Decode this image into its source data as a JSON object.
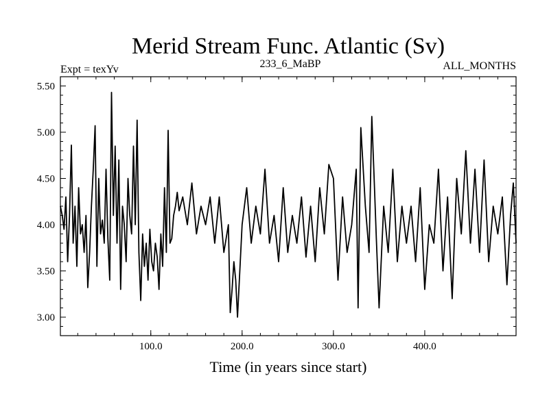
{
  "chart_data": {
    "type": "line",
    "title": "Merid Stream Func. Atlantic (Sv)",
    "subtitle_left": "Expt = texYv",
    "subtitle_center": "233_6_MaBP",
    "subtitle_right": "ALL_MONTHS",
    "xlabel": "Time (in years since start)",
    "ylabel": "",
    "xlim": [
      1,
      500
    ],
    "ylim": [
      2.8,
      5.6
    ],
    "x_ticks": [
      {
        "value": 100,
        "label": "100.0"
      },
      {
        "value": 200,
        "label": "200.0"
      },
      {
        "value": 300,
        "label": "300.0"
      },
      {
        "value": 400,
        "label": "400.0"
      }
    ],
    "y_ticks": [
      {
        "value": 3.0,
        "label": "3.00"
      },
      {
        "value": 3.5,
        "label": "3.50"
      },
      {
        "value": 4.0,
        "label": "4.00"
      },
      {
        "value": 4.5,
        "label": "4.50"
      },
      {
        "value": 5.0,
        "label": "5.00"
      },
      {
        "value": 5.5,
        "label": "5.50"
      }
    ],
    "grid": false,
    "line_color": "#000000",
    "series": [
      {
        "x": [
          1,
          3,
          5,
          7,
          9,
          11,
          13,
          15,
          17,
          19,
          21,
          23,
          25,
          27,
          29,
          31,
          33,
          35,
          37,
          39,
          41,
          43,
          45,
          47,
          49,
          51,
          53,
          55,
          57,
          59,
          61,
          63,
          65,
          67,
          69,
          71,
          73,
          75,
          77,
          79,
          81,
          83,
          85,
          87,
          89,
          91,
          93,
          95,
          97,
          99,
          101,
          103,
          105,
          107,
          109,
          111,
          113,
          115,
          117,
          119,
          121,
          123,
          125,
          127,
          129,
          131,
          135,
          140,
          145,
          150,
          155,
          160,
          165,
          170,
          175,
          180,
          185,
          187,
          189,
          191,
          193,
          195,
          200,
          205,
          210,
          215,
          220,
          225,
          230,
          235,
          240,
          245,
          250,
          255,
          260,
          265,
          270,
          275,
          280,
          285,
          290,
          295,
          300,
          305,
          310,
          315,
          320,
          325,
          327,
          330,
          335,
          339,
          342,
          345,
          347,
          350,
          355,
          360,
          365,
          370,
          375,
          380,
          385,
          390,
          395,
          400,
          405,
          410,
          415,
          420,
          425,
          430,
          435,
          440,
          445,
          450,
          455,
          460,
          465,
          470,
          475,
          480,
          485,
          490,
          494,
          497,
          500
        ],
        "y": [
          4.2,
          4.1,
          3.95,
          4.3,
          3.6,
          4.1,
          4.86,
          3.8,
          4.2,
          3.55,
          4.4,
          3.9,
          4.0,
          3.7,
          4.1,
          3.32,
          3.7,
          4.2,
          4.6,
          5.07,
          3.55,
          4.5,
          3.9,
          4.05,
          3.8,
          4.6,
          3.85,
          3.4,
          5.43,
          4.1,
          4.85,
          3.8,
          4.7,
          3.3,
          4.2,
          4.0,
          3.6,
          4.5,
          4.1,
          3.9,
          4.85,
          4.0,
          5.13,
          3.7,
          3.18,
          3.9,
          3.55,
          3.8,
          3.4,
          3.95,
          3.6,
          3.5,
          3.8,
          3.65,
          3.3,
          3.9,
          3.55,
          4.4,
          3.7,
          5.02,
          3.8,
          3.85,
          4.1,
          4.2,
          4.35,
          4.15,
          4.3,
          4.0,
          4.45,
          3.9,
          4.2,
          4.0,
          4.3,
          3.8,
          4.3,
          3.7,
          4.0,
          3.05,
          3.3,
          3.6,
          3.4,
          3.0,
          4.0,
          4.4,
          3.8,
          4.2,
          3.9,
          4.6,
          3.8,
          4.1,
          3.6,
          4.4,
          3.7,
          4.1,
          3.8,
          4.3,
          3.65,
          4.2,
          3.6,
          4.4,
          3.9,
          4.65,
          4.5,
          3.4,
          4.3,
          3.7,
          4.0,
          4.6,
          3.1,
          5.05,
          4.2,
          3.7,
          5.17,
          4.4,
          3.85,
          3.1,
          4.2,
          3.7,
          4.6,
          3.6,
          4.2,
          3.8,
          4.2,
          3.6,
          4.4,
          3.3,
          4.0,
          3.8,
          4.6,
          3.5,
          4.3,
          3.2,
          4.5,
          3.9,
          4.8,
          3.8,
          4.6,
          3.7,
          4.7,
          3.6,
          4.2,
          3.9,
          4.3,
          3.35,
          4.1,
          4.45,
          3.8
        ]
      }
    ]
  }
}
